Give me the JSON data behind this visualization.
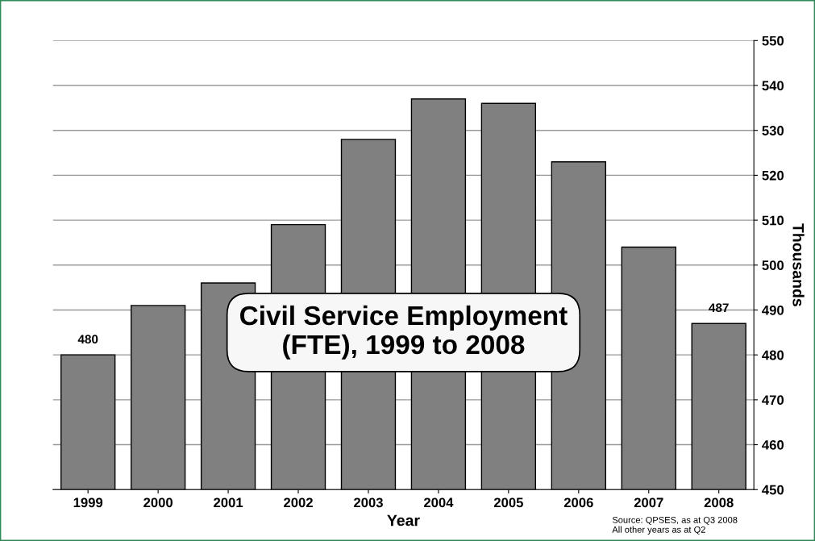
{
  "chart_data": {
    "type": "bar",
    "title": "Civil Service Employment\n(FTE), 1999 to 2008",
    "xlabel": "Year",
    "ylabel": "Thousands",
    "categories": [
      "1999",
      "2000",
      "2001",
      "2002",
      "2003",
      "2004",
      "2005",
      "2006",
      "2007",
      "2008"
    ],
    "values": [
      480,
      491,
      496,
      509,
      528,
      537,
      536,
      523,
      504,
      487
    ],
    "value_labels": [
      "480",
      null,
      null,
      null,
      null,
      null,
      null,
      null,
      null,
      "487"
    ],
    "color": "#808080",
    "ylim": [
      450,
      550
    ],
    "yticks": [
      450,
      460,
      470,
      480,
      490,
      500,
      510,
      520,
      530,
      540,
      550
    ],
    "grid": "y",
    "annotations": [
      "Source: QPSES, as at Q3 2008\nAll other years as at Q2"
    ]
  }
}
